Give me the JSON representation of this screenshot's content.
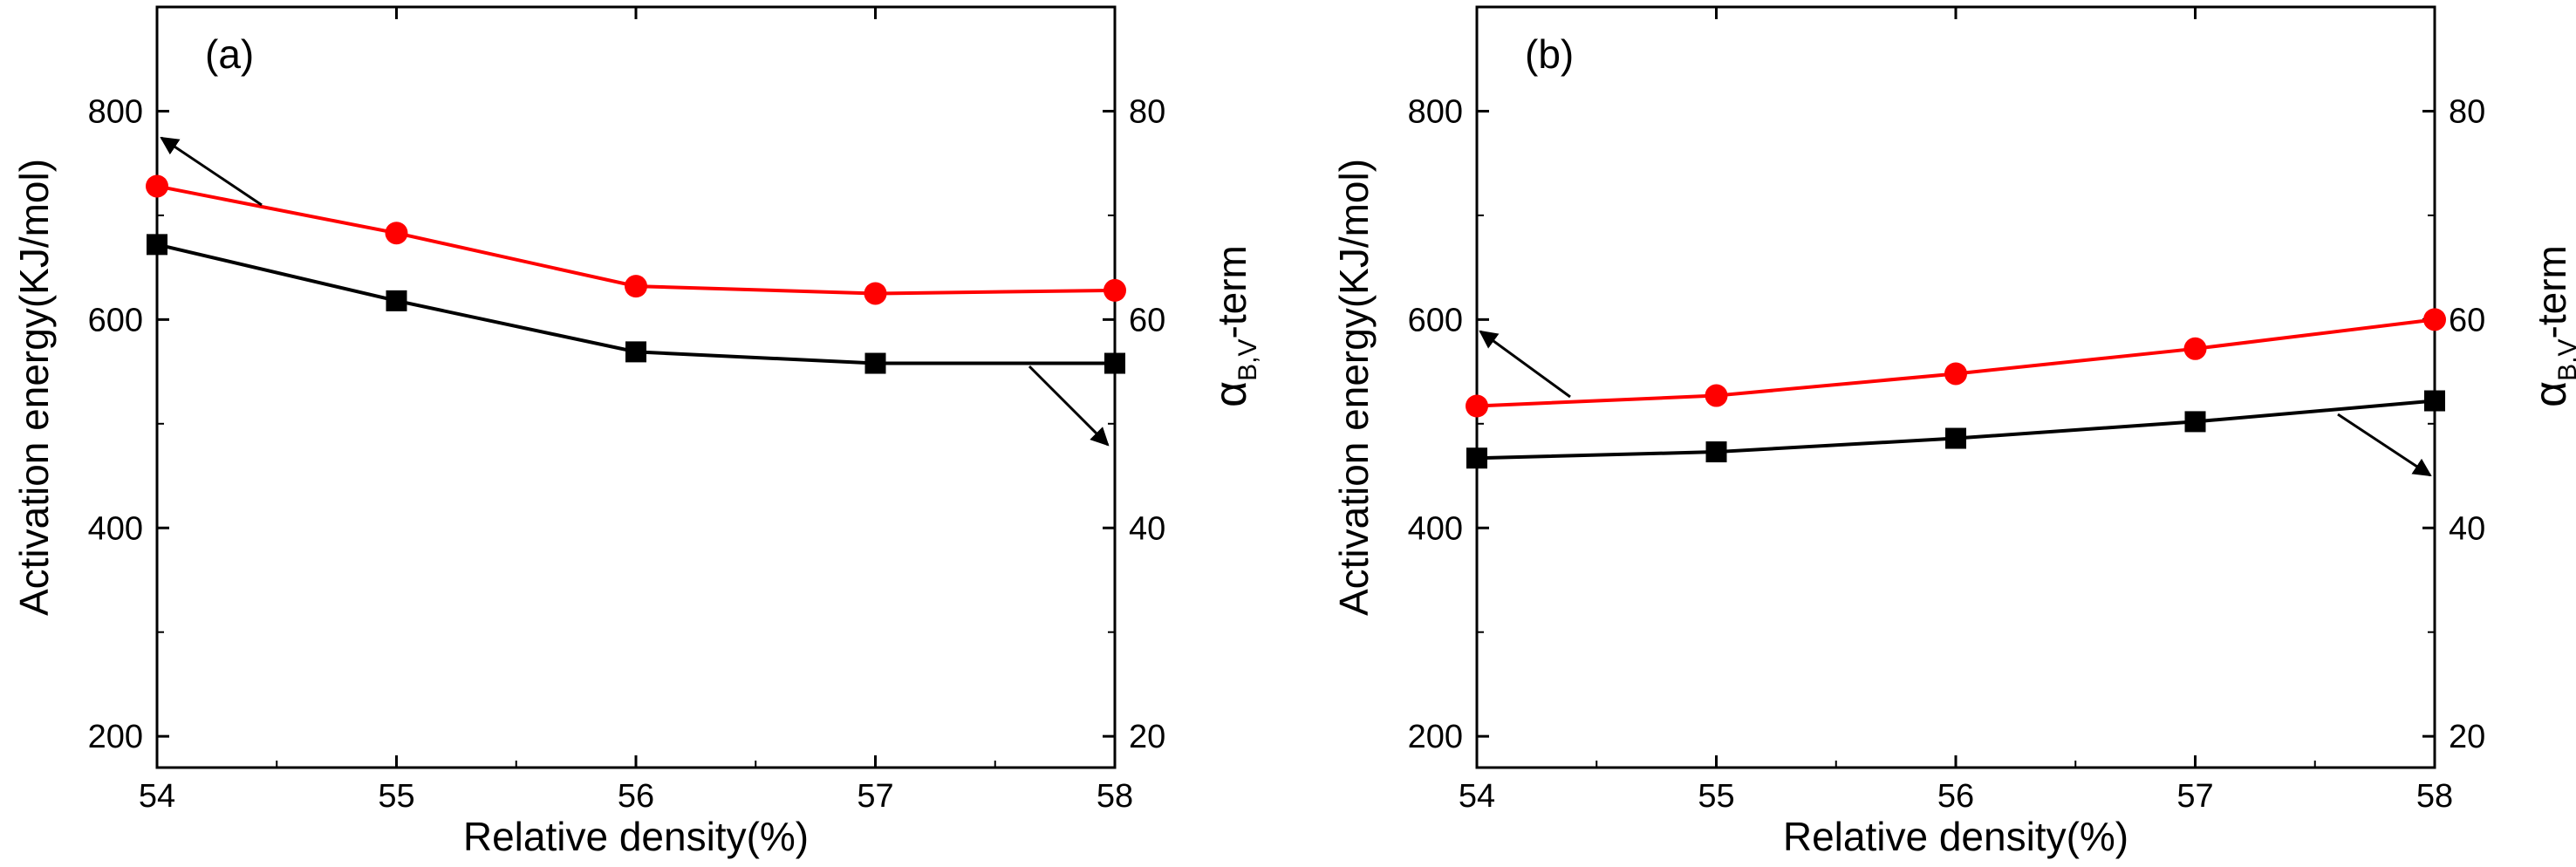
{
  "chart_data": [
    {
      "type": "line",
      "panel_label": "(a)",
      "xlabel": "Relative density(%)",
      "ylabel": "Activation energy(KJ/mol)",
      "y2label_main": "α",
      "y2label_sub": "B,V",
      "y2label_suffix": "-term",
      "x": [
        54,
        55,
        56,
        57,
        58
      ],
      "xlim": [
        54,
        58
      ],
      "ylim": [
        170,
        900
      ],
      "y2lim": [
        17,
        90
      ],
      "xticks": [
        "54",
        "55",
        "56",
        "57",
        "58"
      ],
      "yticks": [
        "200",
        "400",
        "600",
        "800"
      ],
      "y2ticks": [
        "20",
        "40",
        "60",
        "80"
      ],
      "series": [
        {
          "axis": "left",
          "color": "#ff0000",
          "marker": "circle",
          "values": [
            728,
            683,
            632,
            625,
            628
          ]
        },
        {
          "axis": "right",
          "color": "#000000",
          "marker": "square",
          "values": [
            67.2,
            61.8,
            56.9,
            55.8,
            55.8
          ]
        }
      ]
    },
    {
      "type": "line",
      "panel_label": "(b)",
      "xlabel": "Relative density(%)",
      "ylabel": "Activation energy(KJ/mol)",
      "y2label_main": "α",
      "y2label_sub": "B,V",
      "y2label_suffix": "-term",
      "x": [
        54,
        55,
        56,
        57,
        58
      ],
      "xlim": [
        54,
        58
      ],
      "ylim": [
        170,
        900
      ],
      "y2lim": [
        17,
        90
      ],
      "xticks": [
        "54",
        "55",
        "56",
        "57",
        "58"
      ],
      "yticks": [
        "200",
        "400",
        "600",
        "800"
      ],
      "y2ticks": [
        "20",
        "40",
        "60",
        "80"
      ],
      "series": [
        {
          "axis": "left",
          "color": "#ff0000",
          "marker": "circle",
          "values": [
            517,
            527,
            548,
            572,
            600
          ]
        },
        {
          "axis": "right",
          "color": "#000000",
          "marker": "square",
          "values": [
            46.7,
            47.3,
            48.6,
            50.2,
            52.2
          ]
        }
      ]
    }
  ]
}
